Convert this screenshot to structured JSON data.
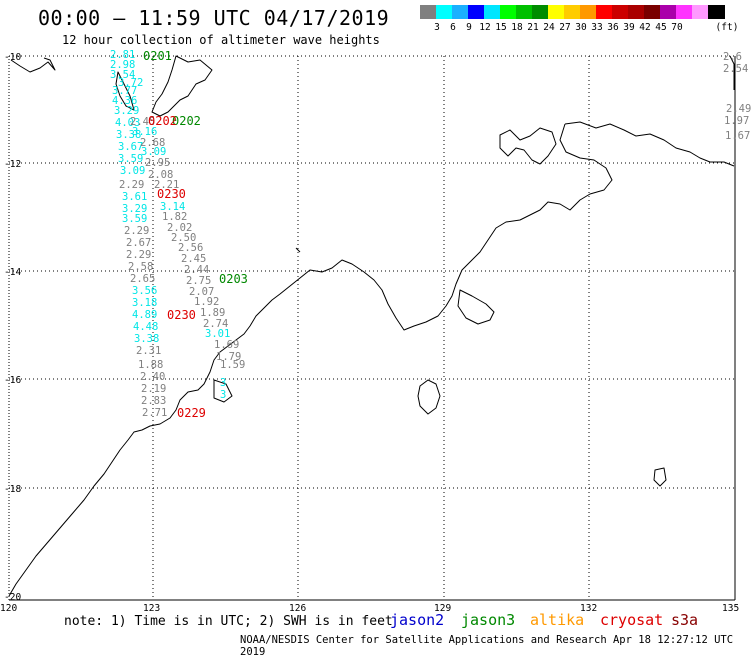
{
  "title": "00:00 – 11:59 UTC 04/17/2019",
  "subtitle": "12 hour collection of altimeter wave heights",
  "legend": {
    "unit": "(ft)",
    "colors": [
      "#7f7f7f",
      "#00ffff",
      "#00bfff",
      "#0000ff",
      "#00ffff",
      "#00ff00",
      "#00c000",
      "#008000",
      "#ffff00",
      "#ffd700",
      "#ffa500",
      "#ff0000",
      "#cc0000",
      "#990000",
      "#800000",
      "#800080",
      "#ff00ff",
      "#ff88ff",
      "#000000"
    ],
    "swatch_colors": [
      "#808080",
      "#00ffff",
      "#1ab0ff",
      "#0000ff",
      "#00e6ff",
      "#00ff00",
      "#00c000",
      "#008c00",
      "#ffff00",
      "#ffcc00",
      "#ff9900",
      "#ff0000",
      "#cc0000",
      "#aa0000",
      "#7a0000",
      "#aa00aa",
      "#ff33ff",
      "#ff99ff",
      "#000000"
    ],
    "labels": [
      "3",
      "6",
      "9",
      "12",
      "15",
      "18",
      "21",
      "24",
      "27",
      "30",
      "33",
      "36",
      "39",
      "42",
      "45",
      "70"
    ]
  },
  "axes": {
    "lat_labels": [
      "-10",
      "-12",
      "-14",
      "-16",
      "-18",
      "-20"
    ],
    "lon_labels": [
      "120",
      "123",
      "126",
      "129",
      "132",
      "135"
    ]
  },
  "observations": [
    {
      "v": "2.81",
      "c": "#00e6e6"
    },
    {
      "v": "2.98",
      "c": "#00e6e6"
    },
    {
      "v": "3.54",
      "c": "#00e6e6"
    },
    {
      "v": "3.72",
      "c": "#00e6e6"
    },
    {
      "v": "3.77",
      "c": "#00e6e6"
    },
    {
      "v": "4.36",
      "c": "#00e6e6"
    },
    {
      "v": "3.29",
      "c": "#00e6e6"
    },
    {
      "v": "4.03",
      "c": "#00e6e6"
    },
    {
      "v": "3.38",
      "c": "#00e6e6"
    },
    {
      "v": "3.67",
      "c": "#00e6e6"
    },
    {
      "v": "3.59",
      "c": "#00e6e6"
    },
    {
      "v": "3.09",
      "c": "#00e6e6"
    },
    {
      "v": "2.29",
      "c": "#808080"
    },
    {
      "v": "3.61",
      "c": "#00e6e6"
    },
    {
      "v": "3.29",
      "c": "#00e6e6"
    },
    {
      "v": "3.59",
      "c": "#00e6e6"
    },
    {
      "v": "2.29",
      "c": "#808080"
    },
    {
      "v": "2.67",
      "c": "#808080"
    },
    {
      "v": "2.29",
      "c": "#808080"
    },
    {
      "v": "2.58",
      "c": "#808080"
    },
    {
      "v": "2.65",
      "c": "#808080"
    },
    {
      "v": "3.56",
      "c": "#00e6e6"
    },
    {
      "v": "3.18",
      "c": "#00e6e6"
    },
    {
      "v": "4.89",
      "c": "#00e6e6"
    },
    {
      "v": "4.48",
      "c": "#00e6e6"
    },
    {
      "v": "3.38",
      "c": "#00e6e6"
    },
    {
      "v": "2.31",
      "c": "#808080"
    },
    {
      "v": "1.88",
      "c": "#808080"
    },
    {
      "v": "2.40",
      "c": "#808080"
    },
    {
      "v": "2.19",
      "c": "#808080"
    },
    {
      "v": "2.83",
      "c": "#808080"
    },
    {
      "v": "2.71",
      "c": "#808080"
    },
    {
      "v": "2.45",
      "c": "#808080"
    },
    {
      "v": "3.16",
      "c": "#00e6e6"
    },
    {
      "v": "2.68",
      "c": "#808080"
    },
    {
      "v": "3.09",
      "c": "#00e6e6"
    },
    {
      "v": "2.95",
      "c": "#808080"
    },
    {
      "v": "2.08",
      "c": "#808080"
    },
    {
      "v": "2.21",
      "c": "#808080"
    },
    {
      "v": "3.14",
      "c": "#00e6e6"
    },
    {
      "v": "1.82",
      "c": "#808080"
    },
    {
      "v": "2.02",
      "c": "#808080"
    },
    {
      "v": "2.50",
      "c": "#808080"
    },
    {
      "v": "2.56",
      "c": "#808080"
    },
    {
      "v": "2.45",
      "c": "#808080"
    },
    {
      "v": "2.44",
      "c": "#808080"
    },
    {
      "v": "2.75",
      "c": "#808080"
    },
    {
      "v": "2.07",
      "c": "#808080"
    },
    {
      "v": "1.92",
      "c": "#808080"
    },
    {
      "v": "1.89",
      "c": "#808080"
    },
    {
      "v": "2.74",
      "c": "#808080"
    },
    {
      "v": "3.01",
      "c": "#00e6e6"
    },
    {
      "v": "1.69",
      "c": "#808080"
    },
    {
      "v": "1.79",
      "c": "#808080"
    },
    {
      "v": "1.59",
      "c": "#808080"
    },
    {
      "v": "3",
      "c": "#00e6e6"
    },
    {
      "v": "3",
      "c": "#00e6e6"
    },
    {
      "v": "2.6",
      "c": "#808080"
    },
    {
      "v": "2.54",
      "c": "#808080"
    },
    {
      "v": "2.49",
      "c": "#808080"
    },
    {
      "v": "1.97",
      "c": "#808080"
    },
    {
      "v": "1.67",
      "c": "#808080"
    }
  ],
  "passes": [
    {
      "v": "0201",
      "c": "#008800"
    },
    {
      "v": "0202",
      "c": "#008800"
    },
    {
      "v": "0202",
      "c": "#dd0000"
    },
    {
      "v": "0230",
      "c": "#dd0000"
    },
    {
      "v": "0203",
      "c": "#008800"
    },
    {
      "v": "0230",
      "c": "#dd0000"
    },
    {
      "v": "0229",
      "c": "#dd0000"
    }
  ],
  "footer": {
    "note": "note: 1) Time is in UTC; 2) SWH is in feet",
    "satellites": [
      {
        "name": "jason2",
        "color": "#0000cc"
      },
      {
        "name": "jason3",
        "color": "#008800"
      },
      {
        "name": "altika",
        "color": "#ff9900"
      },
      {
        "name": "cryosat",
        "color": "#dd0000"
      },
      {
        "name": "s3a",
        "color": "#880000"
      }
    ],
    "credit": "NOAA/NESDIS Center for Satellite Applications and Research   Apr 18 12:27:12 UTC 2019"
  }
}
